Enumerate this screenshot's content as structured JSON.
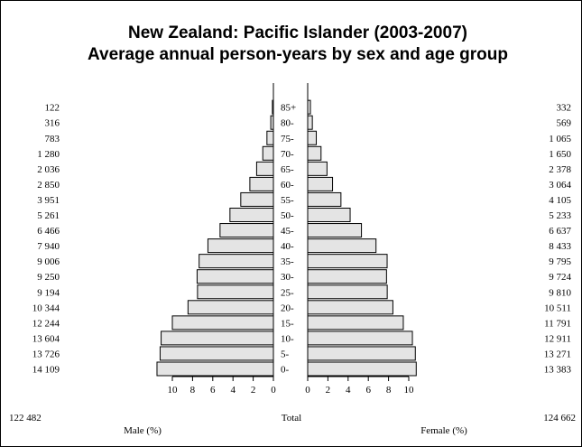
{
  "chart_data": {
    "type": "bar",
    "orientation": "horizontal-population-pyramid",
    "title": "New Zealand: Pacific Islander (2003-2007)",
    "subtitle": "Average annual person-years by sex and age group",
    "categories": [
      "0-",
      "5-",
      "10-",
      "15-",
      "20-",
      "25-",
      "30-",
      "35-",
      "40-",
      "45-",
      "50-",
      "55-",
      "60-",
      "65-",
      "70-",
      "75-",
      "80-",
      "85+"
    ],
    "series": [
      {
        "name": "Male (%)",
        "counts_label": [
          "14 109",
          "13 726",
          "13 604",
          "12 244",
          "10 344",
          "9 194",
          "9 250",
          "9 006",
          "7 940",
          "6 466",
          "5 261",
          "3 951",
          "2 850",
          "2 036",
          "1 280",
          "783",
          "316",
          "122"
        ],
        "values": [
          11.52,
          11.21,
          11.11,
          10.0,
          8.45,
          7.51,
          7.55,
          7.35,
          6.48,
          5.28,
          4.3,
          3.23,
          2.33,
          1.66,
          1.05,
          0.64,
          0.26,
          0.1
        ],
        "total": "122 482"
      },
      {
        "name": "Female (%)",
        "counts_label": [
          "13 383",
          "13 271",
          "12 911",
          "11 791",
          "10 511",
          "9 810",
          "9 724",
          "9 795",
          "8 433",
          "6 637",
          "5 233",
          "4 105",
          "3 064",
          "2 378",
          "1 650",
          "1 065",
          "569",
          "332"
        ],
        "values": [
          10.74,
          10.65,
          10.36,
          9.46,
          8.43,
          7.87,
          7.8,
          7.86,
          6.76,
          5.32,
          4.2,
          3.29,
          2.46,
          1.91,
          1.32,
          0.85,
          0.46,
          0.27
        ],
        "total": "124 662"
      }
    ],
    "total_label": "Total",
    "xlim": [
      0,
      10
    ],
    "xticks_male": [
      "10",
      "8",
      "6",
      "4",
      "2",
      "0"
    ],
    "xticks_female": [
      "0",
      "2",
      "4",
      "6",
      "8",
      "10"
    ],
    "colors": {
      "bar_fill": "#e4e4e4",
      "bar_stroke": "#000000"
    }
  }
}
